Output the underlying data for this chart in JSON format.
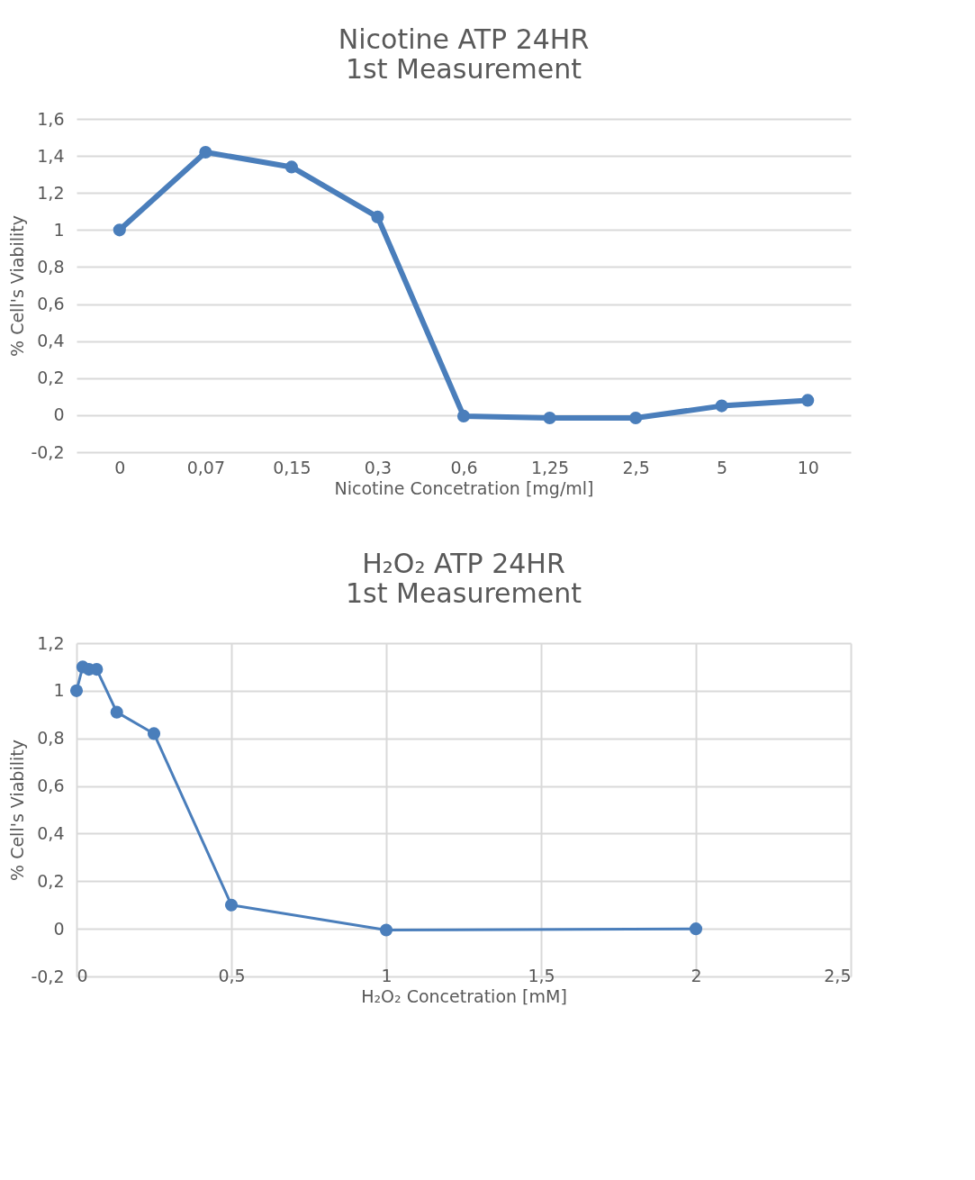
{
  "chart_data": [
    {
      "type": "line",
      "title": "Nicotine ATP 24HR",
      "subtitle": "1st Measurement",
      "xlabel": "Nicotine Concetration [mg/ml]",
      "ylabel": "% Cell's Viability",
      "categories": [
        "0",
        "0,07",
        "0,15",
        "0,3",
        "0,6",
        "1,25",
        "2,5",
        "5",
        "10"
      ],
      "series": [
        {
          "color": "#4a7ebb",
          "values": [
            1.0,
            1.42,
            1.34,
            1.07,
            -0.005,
            -0.015,
            -0.015,
            0.05,
            0.08
          ]
        }
      ],
      "ylim": [
        -0.2,
        1.6
      ],
      "yticks": [
        {
          "value": -0.2,
          "label": "-0,2"
        },
        0,
        {
          "value": 0.2,
          "label": "0,2"
        },
        {
          "value": 0.4,
          "label": "0,4"
        },
        {
          "value": 0.6,
          "label": "0,6"
        },
        {
          "value": 0.8,
          "label": "0,8"
        },
        1,
        {
          "value": 1.2,
          "label": "1,2"
        },
        {
          "value": 1.4,
          "label": "1,4"
        },
        {
          "value": 1.6,
          "label": "1,6"
        }
      ],
      "grid": "y",
      "marker": "circle",
      "line_style": "solid"
    },
    {
      "type": "line",
      "title": "H₂O₂ ATP 24HR",
      "subtitle": "1st Measurement",
      "xlabel": "H₂O₂ Concetration [mM]",
      "ylabel": "% Cell's Viability",
      "x": [
        0,
        0.02,
        0.04,
        0.065,
        0.13,
        0.25,
        0.5,
        1,
        2
      ],
      "series": [
        {
          "color": "#4a7ebb",
          "values": [
            1.0,
            1.1,
            1.09,
            1.09,
            0.91,
            0.82,
            0.1,
            -0.005,
            0.0
          ]
        }
      ],
      "xlim": [
        0,
        2.5
      ],
      "xticks": [
        0,
        {
          "value": 0.5,
          "label": "0,5"
        },
        1,
        {
          "value": 1.5,
          "label": "1,5"
        },
        2,
        {
          "value": 2.5,
          "label": "2,5"
        }
      ],
      "ylim": [
        -0.2,
        1.2
      ],
      "yticks": [
        {
          "value": -0.2,
          "label": "-0,2"
        },
        0,
        {
          "value": 0.2,
          "label": "0,2"
        },
        {
          "value": 0.4,
          "label": "0,4"
        },
        {
          "value": 0.6,
          "label": "0,6"
        },
        {
          "value": 0.8,
          "label": "0,8"
        },
        1,
        {
          "value": 1.2,
          "label": "1,2"
        }
      ],
      "grid": true,
      "marker": "circle",
      "line_style": "solid"
    }
  ]
}
